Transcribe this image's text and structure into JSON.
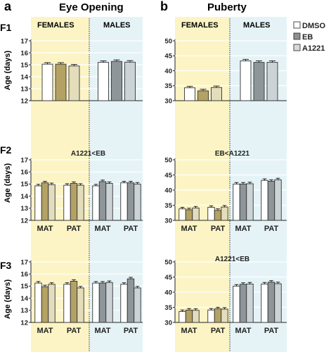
{
  "figure": {
    "panel_a": "a",
    "panel_b": "b",
    "title_a": "Eye Opening",
    "title_b": "Puberty",
    "rows": [
      "F1",
      "F2",
      "F3"
    ],
    "females_label": "FEMALES",
    "males_label": "MALES",
    "y_axis_label": "Age (days)",
    "legend": [
      "DMSO",
      "EB",
      "A1221"
    ],
    "colors": {
      "DMSO": "#ffffff",
      "EB": "#b3a264",
      "A1221": "#e3ddbb",
      "DMSO_male": "#ffffff",
      "EB_male": "#8f969a",
      "A1221_male": "#ccd3d6",
      "females_bg": "#fcf4c4",
      "males_bg": "#e5f3f7",
      "legend_EB": "#8f8f8f",
      "legend_A1221": "#d8d8d8"
    }
  },
  "chart_data": [
    {
      "id": "F1-eye-opening",
      "type": "bar",
      "row": "F1",
      "column": "Eye Opening",
      "ylim": [
        12,
        17
      ],
      "yticks": [
        12,
        13,
        14,
        15,
        16,
        17
      ],
      "annotation": "",
      "groups": [],
      "series": [
        {
          "name": "DMSO",
          "values": [
            15.05,
            15.2
          ]
        },
        {
          "name": "EB",
          "values": [
            15.05,
            15.28
          ]
        },
        {
          "name": "A1221",
          "values": [
            14.9,
            15.22
          ]
        }
      ],
      "sex": [
        "FEMALES",
        "MALES"
      ]
    },
    {
      "id": "F1-puberty",
      "type": "bar",
      "row": "F1",
      "column": "Puberty",
      "ylim": [
        30,
        50
      ],
      "yticks": [
        30,
        35,
        40,
        45,
        50
      ],
      "annotation": "",
      "groups": [],
      "series": [
        {
          "name": "DMSO",
          "values": [
            34.3,
            43.3
          ]
        },
        {
          "name": "EB",
          "values": [
            33.3,
            42.8
          ]
        },
        {
          "name": "A1221",
          "values": [
            34.4,
            42.8
          ]
        }
      ],
      "sex": [
        "FEMALES",
        "MALES"
      ]
    },
    {
      "id": "F2-eye-opening",
      "type": "bar",
      "row": "F2",
      "column": "Eye Opening",
      "ylim": [
        12,
        17
      ],
      "yticks": [
        12,
        13,
        14,
        15,
        16,
        17
      ],
      "annotation": "A1221<EB",
      "groups": [
        "MAT",
        "PAT",
        "MAT",
        "PAT"
      ],
      "series": [
        {
          "name": "DMSO",
          "values": [
            14.85,
            14.9,
            14.85,
            15.1
          ]
        },
        {
          "name": "EB",
          "values": [
            15.1,
            15.05,
            15.2,
            15.1
          ]
        },
        {
          "name": "A1221",
          "values": [
            14.95,
            14.9,
            15.05,
            15.0
          ]
        }
      ],
      "sex": [
        "FEMALES",
        "FEMALES",
        "MALES",
        "MALES"
      ]
    },
    {
      "id": "F2-puberty",
      "type": "bar",
      "row": "F2",
      "column": "Puberty",
      "ylim": [
        30,
        50
      ],
      "yticks": [
        30,
        35,
        40,
        45,
        50
      ],
      "annotation": "EB<A1221",
      "groups": [
        "MAT",
        "PAT",
        "MAT",
        "PAT"
      ],
      "series": [
        {
          "name": "DMSO",
          "values": [
            33.8,
            34.3,
            42.0,
            43.2
          ]
        },
        {
          "name": "EB",
          "values": [
            33.5,
            33.3,
            42.0,
            42.9
          ]
        },
        {
          "name": "A1221",
          "values": [
            34.1,
            34.4,
            42.1,
            43.4
          ]
        }
      ],
      "sex": [
        "FEMALES",
        "FEMALES",
        "MALES",
        "MALES"
      ]
    },
    {
      "id": "F3-eye-opening",
      "type": "bar",
      "row": "F3",
      "column": "Eye Opening",
      "ylim": [
        12,
        17
      ],
      "yticks": [
        12,
        13,
        14,
        15,
        16,
        17
      ],
      "annotation": "",
      "groups": [
        "MAT",
        "PAT",
        "MAT",
        "PAT"
      ],
      "series": [
        {
          "name": "DMSO",
          "values": [
            15.25,
            15.15,
            15.25,
            15.15
          ]
        },
        {
          "name": "EB",
          "values": [
            14.95,
            15.4,
            15.25,
            15.6
          ]
        },
        {
          "name": "A1221",
          "values": [
            15.15,
            14.85,
            15.3,
            14.85
          ]
        }
      ],
      "sex": [
        "FEMALES",
        "FEMALES",
        "MALES",
        "MALES"
      ]
    },
    {
      "id": "F3-puberty",
      "type": "bar",
      "row": "F3",
      "column": "Puberty",
      "ylim": [
        30,
        50
      ],
      "yticks": [
        30,
        35,
        40,
        45,
        50
      ],
      "annotation": "A1221<EB",
      "groups": [
        "MAT",
        "PAT",
        "MAT",
        "PAT"
      ],
      "series": [
        {
          "name": "DMSO",
          "values": [
            33.6,
            34.1,
            42.0,
            42.7
          ]
        },
        {
          "name": "EB",
          "values": [
            34.1,
            34.5,
            42.6,
            43.3
          ]
        },
        {
          "name": "A1221",
          "values": [
            34.0,
            34.4,
            42.7,
            42.8
          ]
        }
      ],
      "sex": [
        "FEMALES",
        "FEMALES",
        "MALES",
        "MALES"
      ]
    }
  ]
}
